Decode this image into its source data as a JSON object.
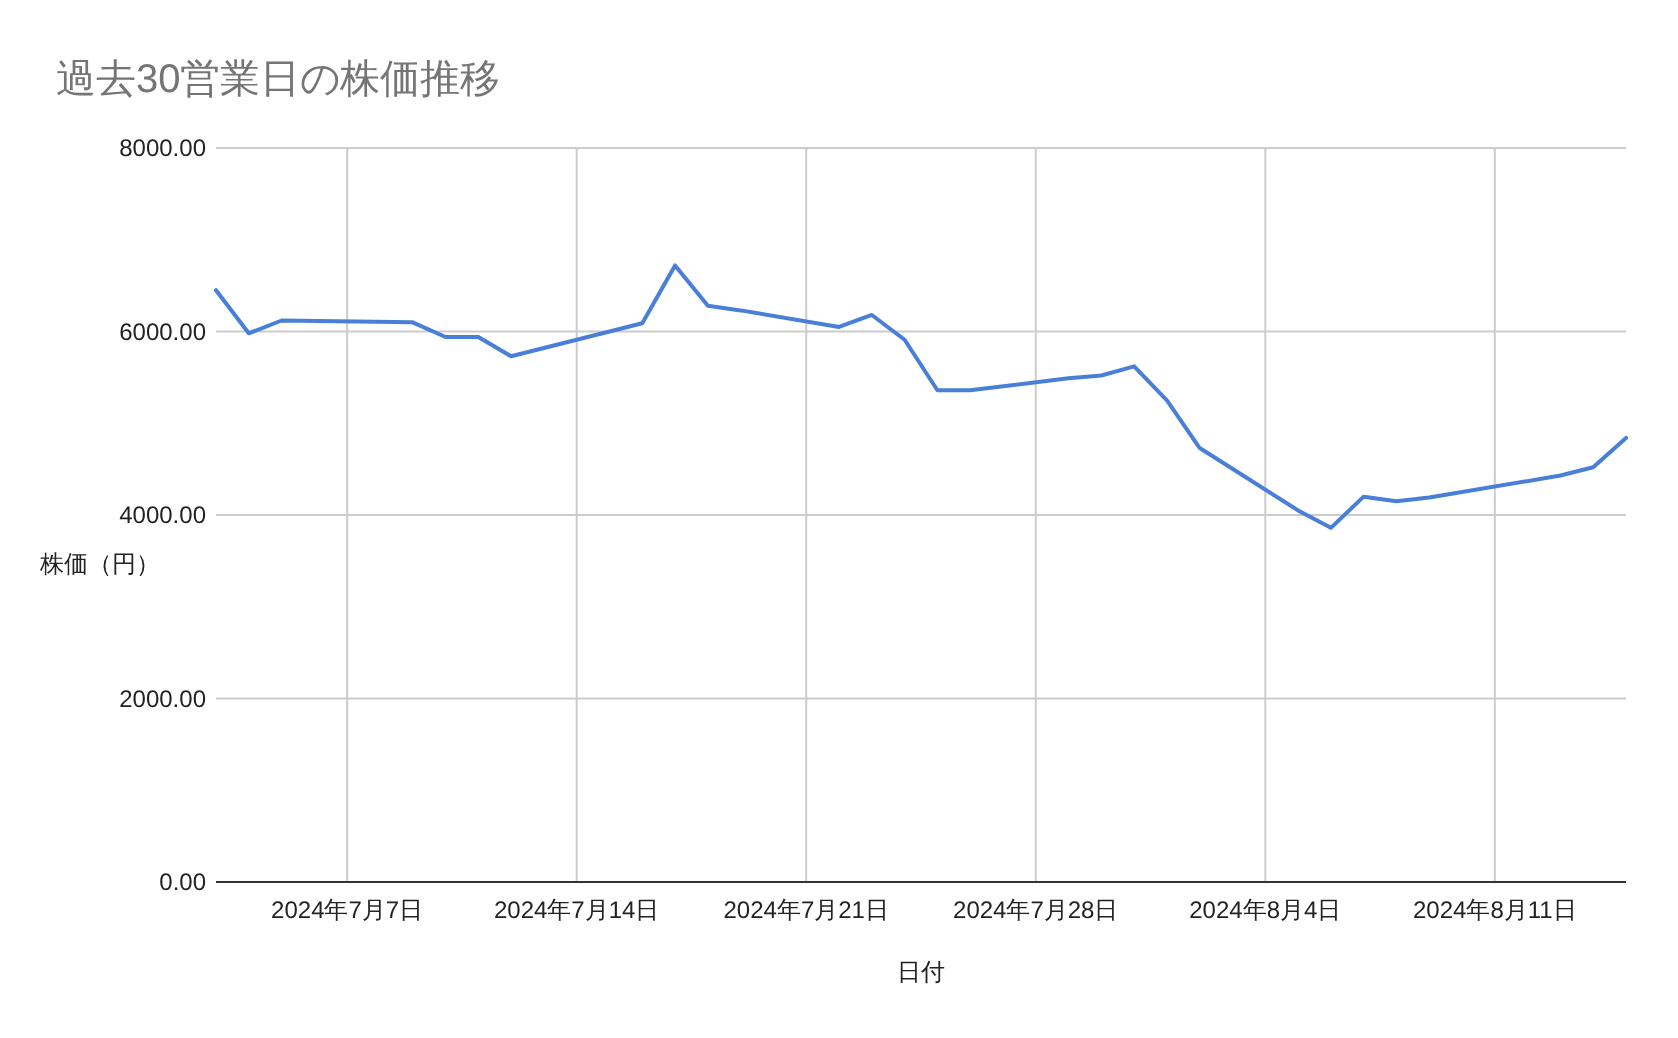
{
  "chart_data": {
    "type": "line",
    "title": "過去30営業日の株価推移",
    "xlabel": "日付",
    "ylabel": "株価（円）",
    "x": [
      "2024-07-03",
      "2024-07-04",
      "2024-07-05",
      "2024-07-09",
      "2024-07-10",
      "2024-07-11",
      "2024-07-12",
      "2024-07-16",
      "2024-07-17",
      "2024-07-18",
      "2024-07-19",
      "2024-07-22",
      "2024-07-23",
      "2024-07-24",
      "2024-07-25",
      "2024-07-26",
      "2024-07-29",
      "2024-07-30",
      "2024-07-31",
      "2024-08-01",
      "2024-08-02",
      "2024-08-05",
      "2024-08-06",
      "2024-08-07",
      "2024-08-08",
      "2024-08-09",
      "2024-08-13",
      "2024-08-14",
      "2024-08-15"
    ],
    "series": [
      {
        "color": "#4a7fd8",
        "values": [
          6450,
          5980,
          6120,
          6100,
          5940,
          5940,
          5730,
          6090,
          6720,
          6280,
          6230,
          6050,
          6180,
          5910,
          5360,
          5360,
          5490,
          5520,
          5620,
          5250,
          4730,
          4050,
          3860,
          4200,
          4150,
          4190,
          4430,
          4520,
          4840
        ]
      }
    ],
    "xlim": [
      "2024-07-03",
      "2024-08-15"
    ],
    "xticks": [
      {
        "value": "2024-07-07",
        "label": "2024年7月7日"
      },
      {
        "value": "2024-07-14",
        "label": "2024年7月14日"
      },
      {
        "value": "2024-07-21",
        "label": "2024年7月21日"
      },
      {
        "value": "2024-07-28",
        "label": "2024年7月28日"
      },
      {
        "value": "2024-08-04",
        "label": "2024年8月4日"
      },
      {
        "value": "2024-08-11",
        "label": "2024年8月11日"
      }
    ],
    "ylim": [
      0,
      8000
    ],
    "yticks": [
      {
        "value": 0,
        "label": "0.00"
      },
      {
        "value": 2000,
        "label": "2000.00"
      },
      {
        "value": 4000,
        "label": "4000.00"
      },
      {
        "value": 6000,
        "label": "6000.00"
      },
      {
        "value": 8000,
        "label": "8000.00"
      }
    ],
    "grid": true,
    "marker": "none",
    "line_style": "solid"
  }
}
